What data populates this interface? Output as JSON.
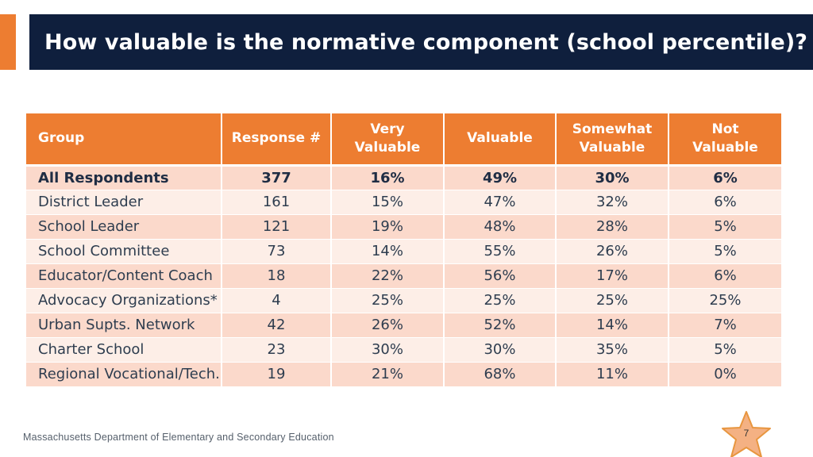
{
  "slide": {
    "title": "How valuable is the normative component (school percentile)?",
    "footer": "Massachusetts Department of Elementary and Secondary Education",
    "page_number": "7"
  },
  "colors": {
    "accent": "#ed7d31",
    "title_band": "#0f1f3d",
    "row_odd": "#fbd9cb",
    "row_even": "#fdeee7"
  },
  "table": {
    "headers": [
      [
        "Group"
      ],
      [
        "Response #"
      ],
      [
        "Very",
        "Valuable"
      ],
      [
        "Valuable"
      ],
      [
        "Somewhat",
        "Valuable"
      ],
      [
        "Not",
        "Valuable"
      ]
    ],
    "rows": [
      [
        "All Respondents",
        "377",
        "16%",
        "49%",
        "30%",
        "6%"
      ],
      [
        "District Leader",
        "161",
        "15%",
        "47%",
        "32%",
        "6%"
      ],
      [
        "School Leader",
        "121",
        "19%",
        "48%",
        "28%",
        "5%"
      ],
      [
        "School Committee",
        "73",
        "14%",
        "55%",
        "26%",
        "5%"
      ],
      [
        "Educator/Content Coach",
        "18",
        "22%",
        "56%",
        "17%",
        "6%"
      ],
      [
        "Advocacy Organizations*",
        "4",
        "25%",
        "25%",
        "25%",
        "25%"
      ],
      [
        "Urban Supts. Network",
        "42",
        "26%",
        "52%",
        "14%",
        "7%"
      ],
      [
        "Charter School",
        "23",
        "30%",
        "30%",
        "35%",
        "5%"
      ],
      [
        "Regional Vocational/Tech.",
        "19",
        "21%",
        "68%",
        "11%",
        "0%"
      ]
    ]
  }
}
